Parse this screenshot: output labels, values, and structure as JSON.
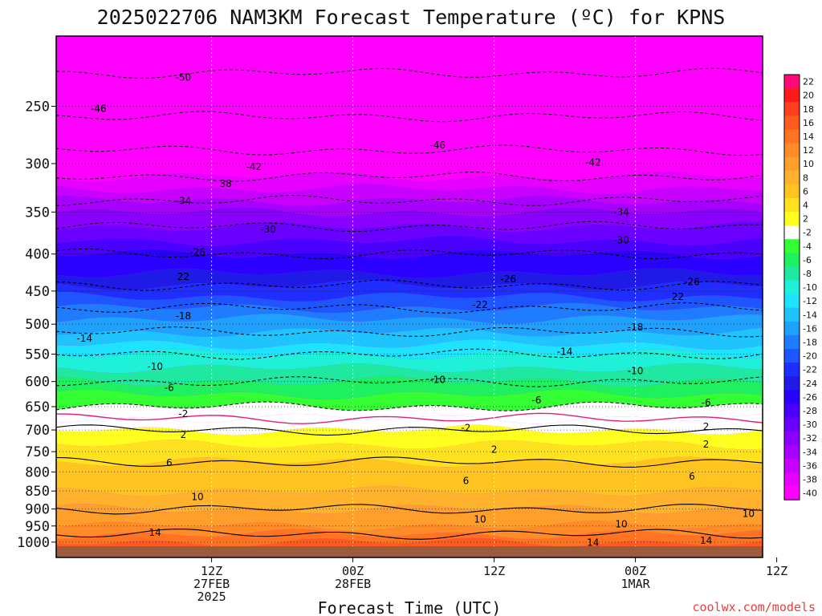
{
  "chart_data": {
    "type": "heatmap",
    "title": "2025022706 NAM3KM Forecast Temperature (ºC) for KPNS",
    "xlabel": "Forecast Time (UTC)",
    "ylabel": "",
    "y_axis": {
      "scale": "log",
      "reversed": true,
      "range": [
        200,
        1050
      ],
      "ticks": [
        250,
        300,
        350,
        400,
        450,
        500,
        550,
        600,
        650,
        700,
        750,
        800,
        850,
        900,
        950,
        1000
      ]
    },
    "x_axis": {
      "range_hours": [
        -5,
        45
      ],
      "ticks": [
        {
          "hour": 6,
          "lines": [
            "12Z",
            "27FEB",
            "2025"
          ]
        },
        {
          "hour": 16,
          "lines": [
            "00Z",
            "28FEB"
          ]
        },
        {
          "hour": 26,
          "lines": [
            "12Z"
          ]
        },
        {
          "hour": 36,
          "lines": [
            "00Z",
            "1MAR"
          ]
        },
        {
          "hour": 46,
          "lines": [
            "12Z"
          ]
        }
      ]
    },
    "colorbar": {
      "levels": [
        22,
        20,
        18,
        16,
        14,
        12,
        10,
        8,
        6,
        4,
        2,
        -2,
        -4,
        -6,
        -8,
        -10,
        -12,
        -14,
        -16,
        -18,
        -20,
        -22,
        -24,
        -26,
        -28,
        -30,
        -32,
        -34,
        -36,
        -38,
        -40
      ],
      "colors": [
        "#ff0a7a",
        "#ff1a1a",
        "#ff3d1f",
        "#ff5a1f",
        "#ff7422",
        "#ff8c26",
        "#ff9f2b",
        "#ffb32c",
        "#ffc41f",
        "#ffe21f",
        "#ffff1f",
        "#ffffff",
        "#33ff33",
        "#1ff060",
        "#1fe8a0",
        "#1ff0d8",
        "#1fe2ff",
        "#1fc4ff",
        "#1fa2ff",
        "#1f7cff",
        "#1f55ff",
        "#1f2eff",
        "#1f1ae6",
        "#2a00ff",
        "#4a00ff",
        "#6a00ff",
        "#8a00ff",
        "#a800ff",
        "#c800ff",
        "#e600ff",
        "#ff00ff"
      ]
    },
    "isotherm_profile": {
      "levels_hpa": [
        1000,
        975,
        950,
        925,
        900,
        875,
        850,
        825,
        800,
        775,
        750,
        725,
        700,
        675,
        650,
        625,
        600,
        575,
        550,
        525,
        500,
        475,
        450,
        425,
        400,
        375,
        350,
        325,
        300,
        275,
        250,
        225,
        200
      ],
      "temperature_c": [
        16,
        14,
        12,
        11,
        10,
        9,
        8,
        7,
        6.5,
        6,
        5,
        3.5,
        2,
        0,
        -2,
        -4,
        -6,
        -8,
        -10,
        -13,
        -15,
        -18,
        -21,
        -24,
        -26,
        -29,
        -32,
        -36,
        -40,
        -44,
        -47,
        -50,
        -53
      ]
    },
    "contour_labels": [
      {
        "text": "-50",
        "hour": 4,
        "p": 228
      },
      {
        "text": "-46",
        "hour": -2,
        "p": 252
      },
      {
        "text": "-46",
        "hour": 22,
        "p": 283
      },
      {
        "text": "-42",
        "hour": 9,
        "p": 303
      },
      {
        "text": "-42",
        "hour": 33,
        "p": 299
      },
      {
        "text": "38",
        "hour": 7,
        "p": 320
      },
      {
        "text": "-34",
        "hour": 4,
        "p": 338
      },
      {
        "text": "-34",
        "hour": 35,
        "p": 350
      },
      {
        "text": "-30",
        "hour": 10,
        "p": 370
      },
      {
        "text": "-30",
        "hour": 35,
        "p": 383
      },
      {
        "text": "-26",
        "hour": 5,
        "p": 398
      },
      {
        "text": "-26",
        "hour": 27,
        "p": 433
      },
      {
        "text": "-26",
        "hour": 40,
        "p": 437
      },
      {
        "text": "22",
        "hour": 4,
        "p": 430
      },
      {
        "text": "22",
        "hour": 39,
        "p": 458
      },
      {
        "text": "-22",
        "hour": 25,
        "p": 470
      },
      {
        "text": "-18",
        "hour": 4,
        "p": 487
      },
      {
        "text": "-18",
        "hour": 36,
        "p": 505
      },
      {
        "text": "-14",
        "hour": -3,
        "p": 523
      },
      {
        "text": "-14",
        "hour": 31,
        "p": 546
      },
      {
        "text": "-10",
        "hour": 2,
        "p": 572
      },
      {
        "text": "-10",
        "hour": 22,
        "p": 597
      },
      {
        "text": "-10",
        "hour": 36,
        "p": 580
      },
      {
        "text": "-6",
        "hour": 3,
        "p": 612
      },
      {
        "text": "-6",
        "hour": 29,
        "p": 637
      },
      {
        "text": "-6",
        "hour": 41,
        "p": 642
      },
      {
        "text": "-2",
        "hour": 4,
        "p": 665
      },
      {
        "text": "-2",
        "hour": 24,
        "p": 695
      },
      {
        "text": "2",
        "hour": 41,
        "p": 693
      },
      {
        "text": "2",
        "hour": 4,
        "p": 711
      },
      {
        "text": "2",
        "hour": 26,
        "p": 745
      },
      {
        "text": "2",
        "hour": 41,
        "p": 733
      },
      {
        "text": "6",
        "hour": 3,
        "p": 777
      },
      {
        "text": "6",
        "hour": 24,
        "p": 823
      },
      {
        "text": "6",
        "hour": 40,
        "p": 811
      },
      {
        "text": "10",
        "hour": 5,
        "p": 866
      },
      {
        "text": "10",
        "hour": 25,
        "p": 930
      },
      {
        "text": "10",
        "hour": 35,
        "p": 944
      },
      {
        "text": "10",
        "hour": 44,
        "p": 914
      },
      {
        "text": "14",
        "hour": 2,
        "p": 970
      },
      {
        "text": "14",
        "hour": 33,
        "p": 1002
      },
      {
        "text": "14",
        "hour": 41,
        "p": 995
      }
    ]
  },
  "credit": "coolwx.com/models"
}
